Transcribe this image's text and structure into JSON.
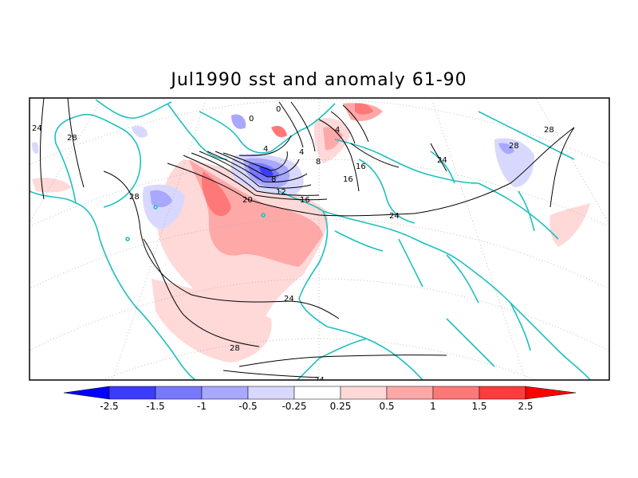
{
  "title": "Jul1990 sst and anomaly 61-90",
  "colorbar": {
    "labels": [
      "-2.5",
      "-1.5",
      "-1",
      "-0.5",
      "-0.25",
      "0.25",
      "0.5",
      "1",
      "1.5",
      "2.5"
    ],
    "colors": [
      "#0000ff",
      "#3c3cff",
      "#7878ff",
      "#a8a8ff",
      "#d8d8ff",
      "#ffffff",
      "#ffd8d8",
      "#ffa8a8",
      "#ff7878",
      "#ff3c3c",
      "#ff0000"
    ]
  },
  "contour_labels": [
    "24",
    "28",
    "28",
    "0",
    "0",
    "4",
    "4",
    "4",
    "8",
    "8",
    "12",
    "16",
    "16",
    "20",
    "16",
    "24",
    "24",
    "28",
    "28",
    "24",
    "24"
  ]
}
